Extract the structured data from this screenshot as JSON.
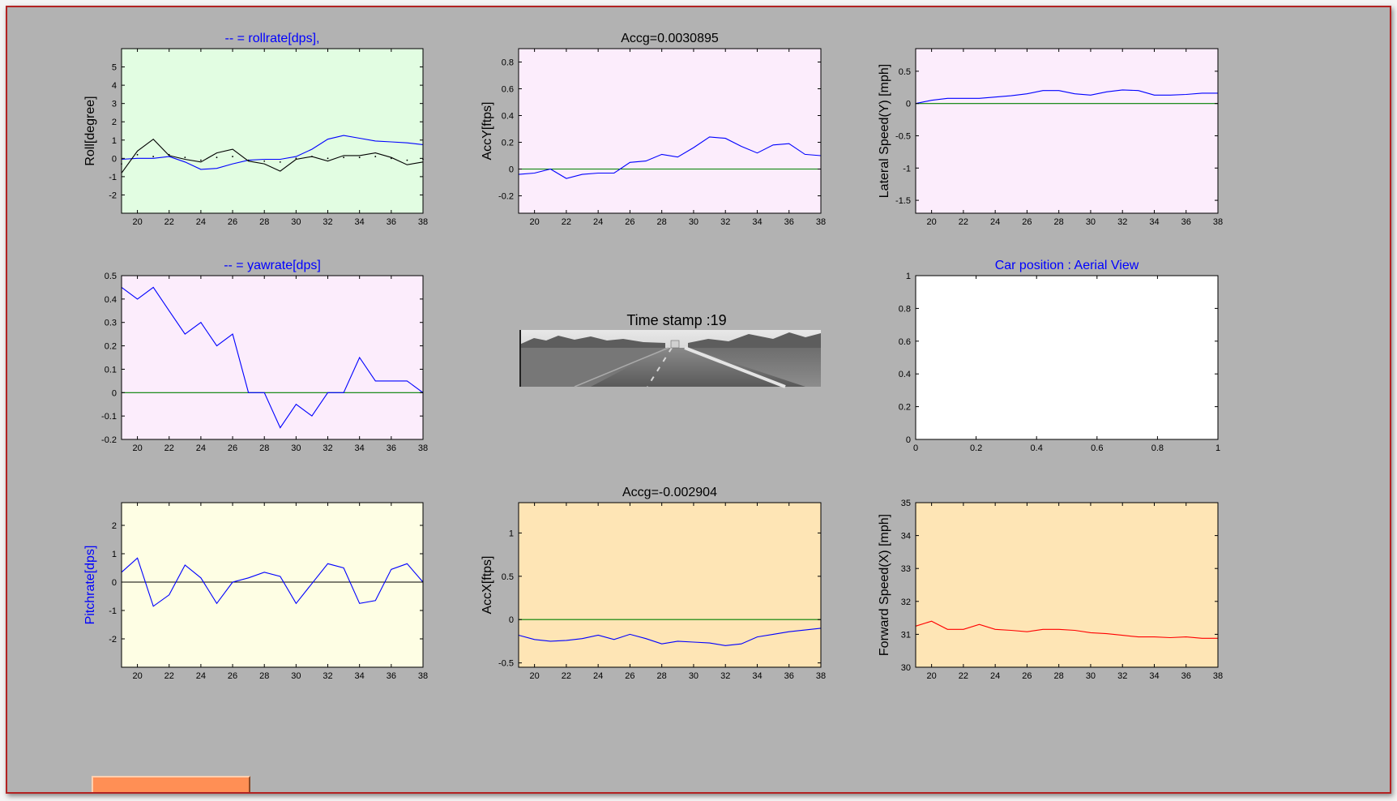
{
  "chart_data": [
    {
      "id": "roll",
      "type": "line",
      "title": "-- =  rollrate[dps],",
      "title_color": "#0000ff",
      "ylabel": "Roll[degree]",
      "ylabel_color": "#000000",
      "bg": "#e2fde2",
      "xlim": [
        19,
        38
      ],
      "ylim": [
        -3,
        6
      ],
      "xticks": [
        20,
        22,
        24,
        26,
        28,
        30,
        32,
        34,
        36,
        38
      ],
      "yticks": [
        -2,
        -1,
        0,
        1,
        2,
        3,
        4,
        5
      ],
      "series": [
        {
          "color": "#0000ff",
          "x": [
            19,
            20,
            21,
            22,
            23,
            24,
            25,
            26,
            27,
            28,
            29,
            30,
            31,
            32,
            33,
            34,
            35,
            36,
            37,
            38
          ],
          "values": [
            -0.05,
            0.0,
            0.0,
            0.1,
            -0.2,
            -0.6,
            -0.55,
            -0.3,
            -0.1,
            -0.05,
            -0.05,
            0.1,
            0.5,
            1.05,
            1.25,
            1.1,
            0.95,
            0.9,
            0.85,
            0.75
          ]
        },
        {
          "color": "#000000",
          "x": [
            19,
            20,
            21,
            22,
            23,
            24,
            25,
            26,
            27,
            28,
            29,
            30,
            31,
            32,
            33,
            34,
            35,
            36,
            37,
            38
          ],
          "values": [
            -0.8,
            0.4,
            1.05,
            0.15,
            -0.05,
            -0.2,
            0.3,
            0.5,
            -0.15,
            -0.3,
            -0.7,
            -0.05,
            0.1,
            -0.15,
            0.15,
            0.15,
            0.3,
            0.05,
            -0.35,
            -0.2
          ]
        },
        {
          "color": "#000000",
          "dotted": true,
          "x": [
            19,
            20,
            21,
            22,
            23,
            24,
            25,
            26,
            27,
            28,
            29,
            30,
            31,
            32,
            33,
            34,
            35,
            36,
            37,
            38
          ],
          "values": [
            -0.3,
            0.2,
            0.1,
            0.2,
            0.05,
            -0.1,
            0.05,
            0.1,
            -0.1,
            -0.15,
            -0.2,
            0.0,
            0.1,
            0.0,
            0.05,
            0.05,
            0.1,
            0.0,
            -0.1,
            -0.05
          ]
        }
      ]
    },
    {
      "id": "accy",
      "type": "line",
      "title": "Accg=0.0030895",
      "title_color": "#000000",
      "ylabel": "AccY[ftps]",
      "ylabel_color": "#000000",
      "bg": "#fcedfc",
      "xlim": [
        19,
        38
      ],
      "ylim": [
        -0.33,
        0.9
      ],
      "xticks": [
        20,
        22,
        24,
        26,
        28,
        30,
        32,
        34,
        36,
        38
      ],
      "yticks": [
        -0.2,
        0,
        0.2,
        0.4,
        0.6,
        0.8
      ],
      "series": [
        {
          "color": "#007f00",
          "x": [
            19,
            38
          ],
          "values": [
            0,
            0
          ]
        },
        {
          "color": "#0000ff",
          "x": [
            19,
            20,
            21,
            22,
            23,
            24,
            25,
            26,
            27,
            28,
            29,
            30,
            31,
            32,
            33,
            34,
            35,
            36,
            37,
            38
          ],
          "values": [
            -0.04,
            -0.03,
            0.0,
            -0.07,
            -0.04,
            -0.03,
            -0.03,
            0.05,
            0.06,
            0.11,
            0.09,
            0.16,
            0.24,
            0.23,
            0.17,
            0.12,
            0.18,
            0.19,
            0.11,
            0.1
          ]
        }
      ]
    },
    {
      "id": "lateral",
      "type": "line",
      "title": "",
      "ylabel": "Lateral Speed(Y) [mph]",
      "ylabel_color": "#000000",
      "bg": "#fcedfc",
      "xlim": [
        19,
        38
      ],
      "ylim": [
        -1.7,
        0.85
      ],
      "xticks": [
        20,
        22,
        24,
        26,
        28,
        30,
        32,
        34,
        36,
        38
      ],
      "yticks": [
        -1.5,
        -1,
        -0.5,
        0,
        0.5
      ],
      "series": [
        {
          "color": "#007f00",
          "x": [
            19,
            38
          ],
          "values": [
            0,
            0
          ]
        },
        {
          "color": "#0000ff",
          "x": [
            19,
            20,
            21,
            22,
            23,
            24,
            25,
            26,
            27,
            28,
            29,
            30,
            31,
            32,
            33,
            34,
            35,
            36,
            37,
            38
          ],
          "values": [
            0.0,
            0.05,
            0.08,
            0.08,
            0.08,
            0.1,
            0.12,
            0.15,
            0.2,
            0.2,
            0.15,
            0.13,
            0.18,
            0.21,
            0.2,
            0.13,
            0.13,
            0.14,
            0.16,
            0.16
          ]
        }
      ]
    },
    {
      "id": "yaw",
      "type": "line",
      "title": "-- =  yawrate[dps]",
      "title_color": "#0000ff",
      "ylabel": "",
      "bg": "#fcedfc",
      "xlim": [
        19,
        38
      ],
      "ylim": [
        -0.2,
        0.5
      ],
      "xticks": [
        20,
        22,
        24,
        26,
        28,
        30,
        32,
        34,
        36,
        38
      ],
      "yticks": [
        -0.2,
        -0.1,
        0,
        0.1,
        0.2,
        0.3,
        0.4,
        0.5
      ],
      "series": [
        {
          "color": "#007f00",
          "x": [
            19,
            38
          ],
          "values": [
            0,
            0
          ]
        },
        {
          "color": "#0000ff",
          "x": [
            19,
            20,
            21,
            22,
            23,
            24,
            25,
            26,
            27,
            28,
            29,
            30,
            31,
            32,
            33,
            34,
            35,
            36,
            37,
            38
          ],
          "values": [
            0.45,
            0.4,
            0.45,
            0.35,
            0.25,
            0.3,
            0.2,
            0.25,
            0.0,
            0.0,
            -0.15,
            -0.05,
            -0.1,
            0.0,
            0.0,
            0.15,
            0.05,
            0.05,
            0.05,
            0.0
          ]
        }
      ]
    },
    {
      "id": "aerial",
      "type": "line",
      "title": "Car position : Aerial View",
      "title_color": "#0000ff",
      "ylabel": "",
      "bg": "#ffffff",
      "xlim": [
        0,
        1
      ],
      "ylim": [
        0,
        1
      ],
      "xticks": [
        0,
        0.2,
        0.4,
        0.6,
        0.8,
        1
      ],
      "yticks": [
        0,
        0.2,
        0.4,
        0.6,
        0.8,
        1
      ],
      "series": []
    },
    {
      "id": "pitch",
      "type": "line",
      "title": "",
      "ylabel": "Pitchrate[dps]",
      "ylabel_color": "#0000ff",
      "bg": "#fefee4",
      "xlim": [
        19,
        38
      ],
      "ylim": [
        -3,
        2.8
      ],
      "xticks": [
        20,
        22,
        24,
        26,
        28,
        30,
        32,
        34,
        36,
        38
      ],
      "yticks": [
        -2,
        -1,
        0,
        1,
        2
      ],
      "series": [
        {
          "color": "#000000",
          "x": [
            19,
            38
          ],
          "values": [
            0,
            0
          ]
        },
        {
          "color": "#0000ff",
          "x": [
            19,
            20,
            21,
            22,
            23,
            24,
            25,
            26,
            27,
            28,
            29,
            30,
            31,
            32,
            33,
            34,
            35,
            36,
            37,
            38
          ],
          "values": [
            0.35,
            0.85,
            -0.85,
            -0.45,
            0.6,
            0.15,
            -0.75,
            0.0,
            0.15,
            0.35,
            0.2,
            -0.75,
            -0.05,
            0.65,
            0.5,
            -0.75,
            -0.65,
            0.45,
            0.65,
            0.0
          ]
        }
      ]
    },
    {
      "id": "accx",
      "type": "line",
      "title": "Accg=-0.002904",
      "title_color": "#000000",
      "ylabel": "AccX[ftps]",
      "ylabel_color": "#000000",
      "bg": "#fee5b5",
      "xlim": [
        19,
        38
      ],
      "ylim": [
        -0.55,
        1.35
      ],
      "xticks": [
        20,
        22,
        24,
        26,
        28,
        30,
        32,
        34,
        36,
        38
      ],
      "yticks": [
        -0.5,
        0,
        0.5,
        1
      ],
      "series": [
        {
          "color": "#007f00",
          "x": [
            19,
            38
          ],
          "values": [
            0,
            0
          ]
        },
        {
          "color": "#0000ff",
          "x": [
            19,
            20,
            21,
            22,
            23,
            24,
            25,
            26,
            27,
            28,
            29,
            30,
            31,
            32,
            33,
            34,
            35,
            36,
            37,
            38
          ],
          "values": [
            -0.18,
            -0.23,
            -0.25,
            -0.24,
            -0.22,
            -0.18,
            -0.23,
            -0.17,
            -0.22,
            -0.28,
            -0.25,
            -0.26,
            -0.27,
            -0.3,
            -0.28,
            -0.2,
            -0.17,
            -0.14,
            -0.12,
            -0.1
          ]
        }
      ]
    },
    {
      "id": "forward",
      "type": "line",
      "title": "",
      "ylabel": "Forward Speed(X) [mph]",
      "ylabel_color": "#000000",
      "bg": "#fee5b5",
      "xlim": [
        19,
        38
      ],
      "ylim": [
        30,
        35
      ],
      "xticks": [
        20,
        22,
        24,
        26,
        28,
        30,
        32,
        34,
        36,
        38
      ],
      "yticks": [
        30,
        31,
        32,
        33,
        34,
        35
      ],
      "series": [
        {
          "color": "#ff0000",
          "x": [
            19,
            20,
            21,
            22,
            23,
            24,
            25,
            26,
            27,
            28,
            29,
            30,
            31,
            32,
            33,
            34,
            35,
            36,
            37,
            38
          ],
          "values": [
            31.25,
            31.4,
            31.15,
            31.15,
            31.3,
            31.15,
            31.12,
            31.08,
            31.15,
            31.15,
            31.12,
            31.05,
            31.02,
            30.97,
            30.92,
            30.92,
            30.9,
            30.92,
            30.88,
            30.88
          ]
        }
      ]
    }
  ],
  "camera": {
    "title": "Time stamp :19",
    "title_color": "#000000"
  },
  "button": {
    "label": ""
  }
}
